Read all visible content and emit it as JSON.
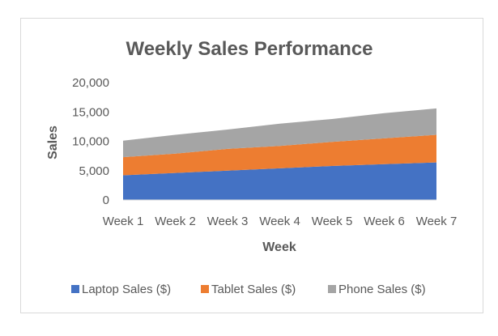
{
  "chart_data": {
    "type": "area",
    "stacked": true,
    "title": "Weekly Sales Performance",
    "xlabel": "Week",
    "ylabel": "Sales",
    "categories": [
      "Week 1",
      "Week 2",
      "Week 3",
      "Week 4",
      "Week 5",
      "Week 6",
      "Week 7"
    ],
    "ylim": [
      0,
      20000
    ],
    "yticks": [
      0,
      5000,
      10000,
      15000,
      20000
    ],
    "ytick_labels": [
      "0",
      "5,000",
      "10,000",
      "15,000",
      "20,000"
    ],
    "grid": false,
    "legend_position": "bottom",
    "series": [
      {
        "name": "Laptop Sales ($)",
        "color": "#4472C4",
        "values": [
          4200,
          4600,
          5000,
          5400,
          5800,
          6100,
          6400
        ]
      },
      {
        "name": "Tablet Sales ($)",
        "color": "#ED7D31",
        "values": [
          3100,
          3300,
          3700,
          3800,
          4100,
          4400,
          4700
        ]
      },
      {
        "name": "Phone Sales ($)",
        "color": "#A5A5A5",
        "values": [
          2800,
          3200,
          3300,
          3800,
          3900,
          4300,
          4500
        ]
      }
    ]
  }
}
